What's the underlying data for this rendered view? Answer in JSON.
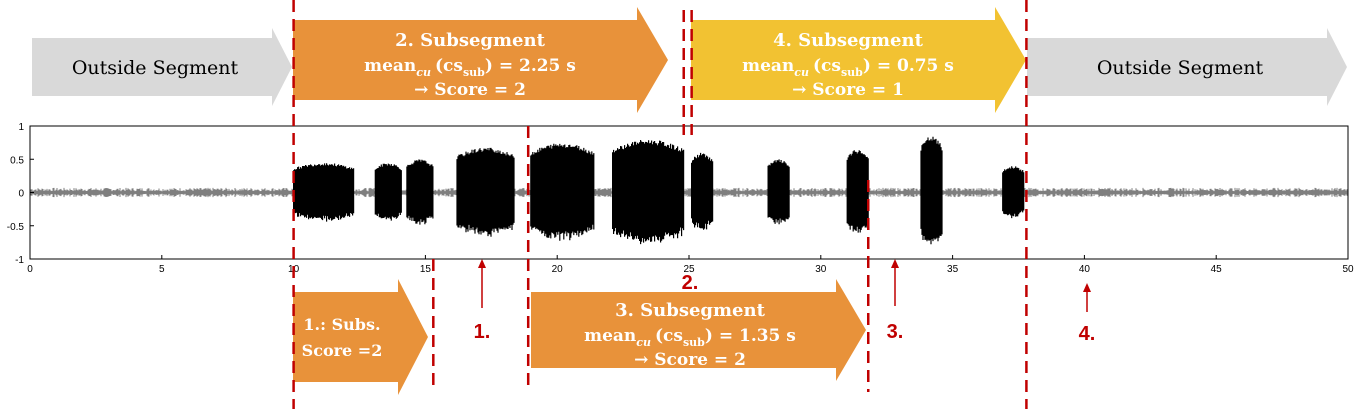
{
  "colors": {
    "gray_arrow": "#d9d9d9",
    "orange": "#e8923a",
    "yellow": "#f2c232",
    "marker_red": "#c00000",
    "signal": "#000000",
    "noise": "#7f7f7f"
  },
  "top_arrows": [
    {
      "id": "outside-left",
      "line1": "Outside Segment"
    },
    {
      "id": "subseg2",
      "title": "2. Subsegment",
      "mean_word": "mean",
      "mean_sub": "cu",
      "cs": "(cs",
      "cs_sub": "sub",
      "value": ") = 2.25 s",
      "score": "→  Score = 2"
    },
    {
      "id": "subseg4",
      "title": "4. Subsegment",
      "mean_word": "mean",
      "mean_sub": "cu",
      "cs": "(cs",
      "cs_sub": "sub",
      "value": ") = 0.75 s",
      "score": "→  Score = 1"
    },
    {
      "id": "outside-right",
      "line1": "Outside Segment"
    }
  ],
  "bottom_arrows": [
    {
      "id": "subs1",
      "line1": "1.: Subs.",
      "line2": "Score =2"
    },
    {
      "id": "subseg3",
      "title": "3. Subsegment",
      "mean_word": "mean",
      "mean_sub": "cu",
      "cs": "(cs",
      "cs_sub": "sub",
      "value": ") = 1.35 s",
      "score": "→  Score = 2"
    }
  ],
  "markers": [
    "1.",
    "2.",
    "3.",
    "4."
  ],
  "waveform": {
    "x_ticks": [
      "0",
      "5",
      "10",
      "15",
      "20",
      "25",
      "30",
      "35",
      "40",
      "45",
      "50"
    ],
    "y_ticks": [
      "1",
      "0.5",
      "0",
      "-0.5",
      "-1"
    ],
    "xlim": [
      0,
      50
    ],
    "ylim": [
      -1,
      1
    ],
    "bursts": [
      {
        "start": 10.0,
        "end": 12.3,
        "amp": 0.45
      },
      {
        "start": 13.1,
        "end": 14.1,
        "amp": 0.45
      },
      {
        "start": 14.3,
        "end": 15.3,
        "amp": 0.5
      },
      {
        "start": 16.2,
        "end": 18.4,
        "amp": 0.68
      },
      {
        "start": 19.0,
        "end": 21.4,
        "amp": 0.75
      },
      {
        "start": 22.1,
        "end": 24.8,
        "amp": 0.8
      },
      {
        "start": 25.1,
        "end": 25.9,
        "amp": 0.6
      },
      {
        "start": 28.0,
        "end": 28.8,
        "amp": 0.5
      },
      {
        "start": 31.0,
        "end": 31.8,
        "amp": 0.65
      },
      {
        "start": 33.8,
        "end": 34.6,
        "amp": 0.85
      },
      {
        "start": 36.9,
        "end": 37.7,
        "amp": 0.4
      }
    ],
    "divider_lines": [
      10,
      15.3,
      18.9,
      24.8,
      25.1,
      31.8,
      37.8
    ]
  }
}
